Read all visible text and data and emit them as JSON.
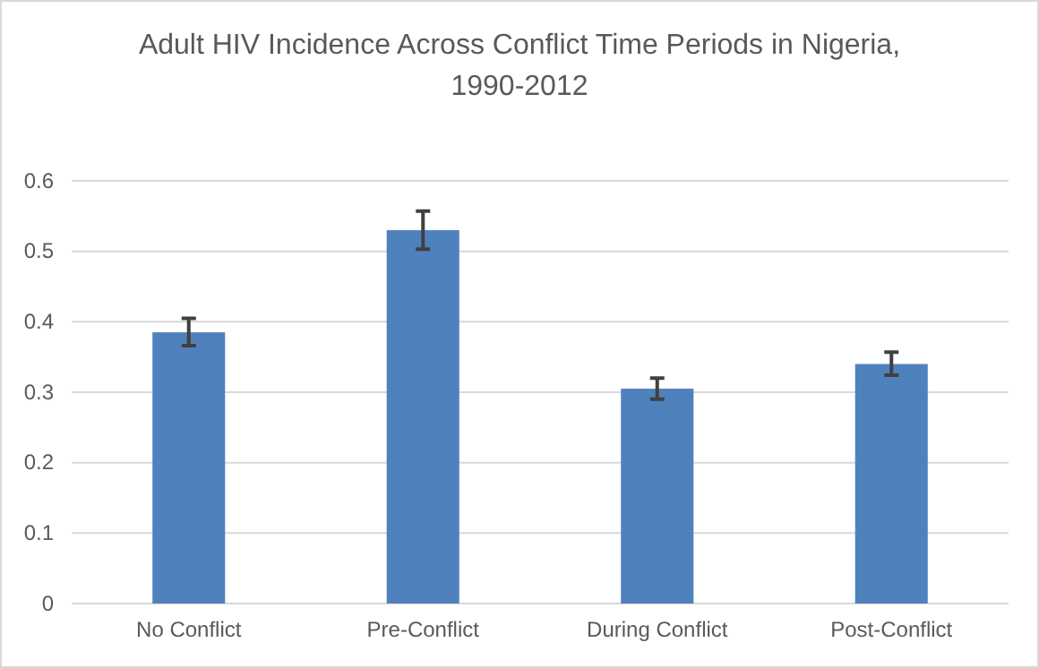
{
  "chart_data": {
    "type": "bar",
    "title": "Adult HIV Incidence Across Conflict Time Periods in Nigeria, 1990-2012",
    "categories": [
      "No Conflict",
      "Pre-Conflict",
      "During Conflict",
      "Post-Conflict"
    ],
    "values": [
      0.385,
      0.53,
      0.305,
      0.34
    ],
    "errors": [
      [
        0.366,
        0.405
      ],
      [
        0.503,
        0.557
      ],
      [
        0.29,
        0.32
      ],
      [
        0.324,
        0.357
      ]
    ],
    "color": "#4f81bd",
    "ylim": [
      0,
      0.6
    ],
    "yticks": [
      0,
      0.1,
      0.2,
      0.3,
      0.4,
      0.5,
      0.6
    ],
    "grid": "y"
  }
}
